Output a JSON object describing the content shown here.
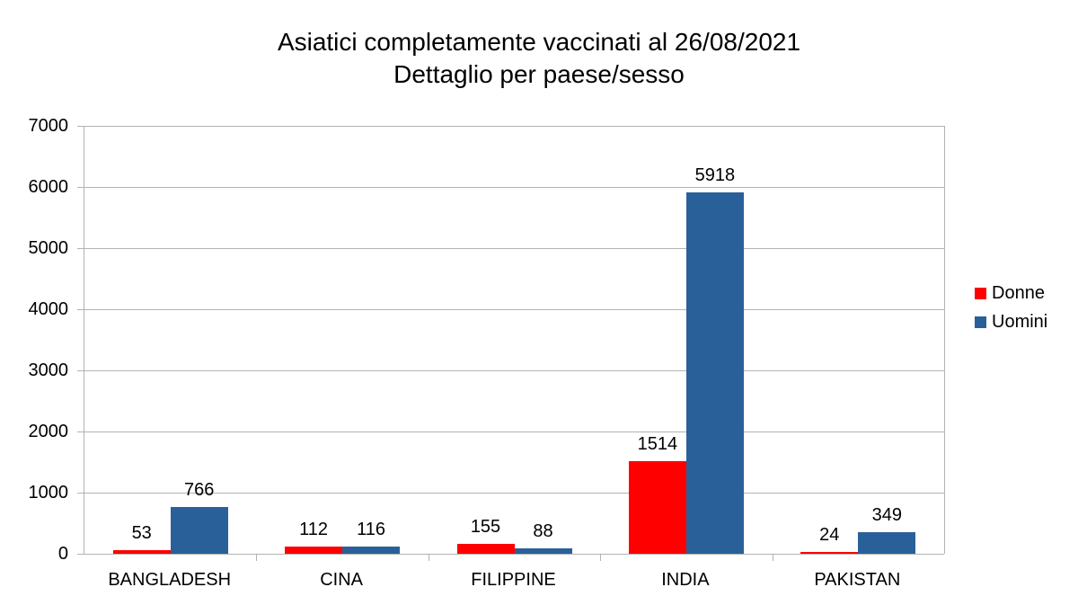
{
  "chart_data": {
    "type": "bar",
    "title": "Asiatici completamente vaccinati al 26/08/2021",
    "subtitle": "Dettaglio per paese/sesso",
    "xlabel": "",
    "ylabel": "",
    "categories": [
      "BANGLADESH",
      "CINA",
      "FILIPPINE",
      "INDIA",
      "PAKISTAN"
    ],
    "series": [
      {
        "name": "Donne",
        "color": "#ff0000",
        "values": [
          53,
          112,
          155,
          1514,
          24
        ]
      },
      {
        "name": "Uomini",
        "color": "#2a6099",
        "values": [
          766,
          116,
          88,
          5918,
          349
        ]
      }
    ],
    "ylim": [
      0,
      7000
    ],
    "yticks": [
      "0",
      "1000",
      "2000",
      "3000",
      "4000",
      "5000",
      "6000",
      "7000"
    ],
    "grid": true,
    "legend_position": "right",
    "data_labels": true
  },
  "title": {
    "line1": "Asiatici completamente vaccinati al 26/08/2021",
    "line2": "Dettaglio per paese/sesso"
  },
  "legend": [
    {
      "label": "Donne",
      "color": "#ff0000"
    },
    {
      "label": "Uomini",
      "color": "#2a6099"
    }
  ]
}
